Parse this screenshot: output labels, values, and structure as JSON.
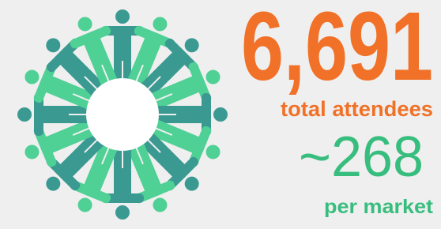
{
  "stats": [
    {
      "value": "6,691",
      "label": "total attendees"
    },
    {
      "value": "~268",
      "label": "per market"
    }
  ]
}
